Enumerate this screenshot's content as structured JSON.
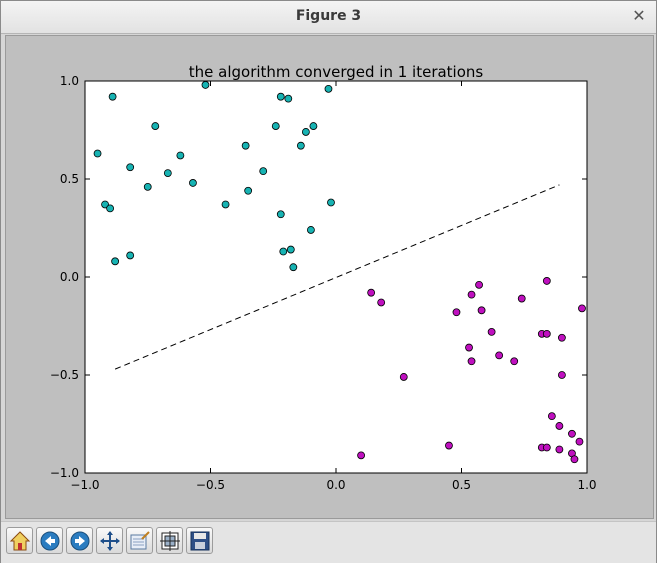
{
  "window": {
    "title": "Figure 3",
    "close_glyph": "✕"
  },
  "toolbar": {
    "buttons": [
      {
        "icon": "home-icon"
      },
      {
        "icon": "back-arrow-icon"
      },
      {
        "icon": "forward-arrow-icon"
      },
      {
        "icon": "pan-icon"
      },
      {
        "icon": "zoom-rect-icon"
      },
      {
        "icon": "configure-subplots-icon"
      },
      {
        "icon": "save-icon"
      }
    ]
  },
  "chart_data": {
    "type": "scatter",
    "title": "the algorithm converged in 1 iterations",
    "xlabel": "",
    "ylabel": "",
    "xlim": [
      -1.0,
      1.0
    ],
    "ylim": [
      -1.0,
      1.0
    ],
    "xticks": [
      "−1.0",
      "−0.5",
      "0.0",
      "0.5",
      "1.0"
    ],
    "yticks": [
      "1.0",
      "0.5",
      "0.0",
      "−0.5",
      "−1.0"
    ],
    "grid": false,
    "series": [
      {
        "color": "#17b3b3",
        "points": [
          [
            -0.89,
            0.92
          ],
          [
            -0.52,
            0.98
          ],
          [
            -0.22,
            0.92
          ],
          [
            -0.19,
            0.91
          ],
          [
            -0.03,
            0.96
          ],
          [
            -0.95,
            0.63
          ],
          [
            -0.72,
            0.77
          ],
          [
            -0.24,
            0.77
          ],
          [
            -0.12,
            0.74
          ],
          [
            -0.09,
            0.77
          ],
          [
            -0.36,
            0.67
          ],
          [
            -0.14,
            0.67
          ],
          [
            -0.82,
            0.56
          ],
          [
            -0.62,
            0.62
          ],
          [
            -0.67,
            0.53
          ],
          [
            -0.75,
            0.46
          ],
          [
            -0.29,
            0.54
          ],
          [
            -0.57,
            0.48
          ],
          [
            -0.35,
            0.44
          ],
          [
            -0.92,
            0.37
          ],
          [
            -0.9,
            0.35
          ],
          [
            -0.44,
            0.37
          ],
          [
            -0.22,
            0.32
          ],
          [
            -0.02,
            0.38
          ],
          [
            -0.1,
            0.24
          ],
          [
            -0.21,
            0.13
          ],
          [
            -0.18,
            0.14
          ],
          [
            -0.88,
            0.08
          ],
          [
            -0.82,
            0.11
          ],
          [
            -0.17,
            0.05
          ]
        ]
      },
      {
        "color": "#bf10bf",
        "points": [
          [
            0.84,
            -0.02
          ],
          [
            0.57,
            -0.04
          ],
          [
            0.54,
            -0.09
          ],
          [
            0.14,
            -0.08
          ],
          [
            0.18,
            -0.13
          ],
          [
            0.74,
            -0.11
          ],
          [
            0.98,
            -0.16
          ],
          [
            0.48,
            -0.18
          ],
          [
            0.58,
            -0.17
          ],
          [
            0.62,
            -0.28
          ],
          [
            0.82,
            -0.29
          ],
          [
            0.84,
            -0.29
          ],
          [
            0.9,
            -0.31
          ],
          [
            0.53,
            -0.36
          ],
          [
            0.65,
            -0.4
          ],
          [
            0.54,
            -0.43
          ],
          [
            0.71,
            -0.43
          ],
          [
            0.9,
            -0.5
          ],
          [
            0.27,
            -0.51
          ],
          [
            0.86,
            -0.71
          ],
          [
            0.89,
            -0.76
          ],
          [
            0.94,
            -0.8
          ],
          [
            0.97,
            -0.84
          ],
          [
            0.45,
            -0.86
          ],
          [
            0.82,
            -0.87
          ],
          [
            0.84,
            -0.87
          ],
          [
            0.89,
            -0.88
          ],
          [
            0.94,
            -0.9
          ],
          [
            0.95,
            -0.93
          ],
          [
            0.1,
            -0.91
          ]
        ]
      }
    ],
    "decision_line": {
      "style": "dashed",
      "color": "#000000",
      "points": [
        [
          -0.88,
          -0.47
        ],
        [
          0.89,
          0.47
        ]
      ]
    }
  }
}
